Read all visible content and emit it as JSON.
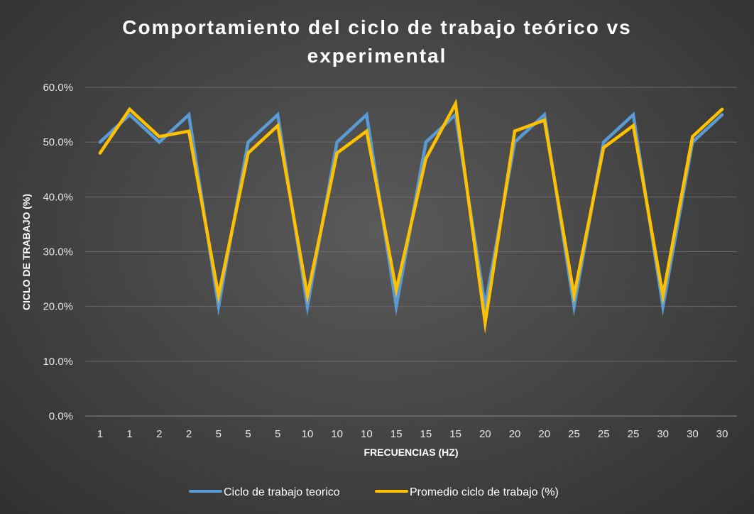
{
  "chart_data": {
    "type": "line",
    "title_lines": [
      "Comportamiento del ciclo de trabajo teórico vs",
      "experimental"
    ],
    "xlabel": "FRECUENCIAS (HZ)",
    "ylabel": "CICLO DE TRABAJO (%)",
    "categories": [
      "1",
      "1",
      "2",
      "2",
      "5",
      "5",
      "5",
      "10",
      "10",
      "10",
      "15",
      "15",
      "15",
      "20",
      "20",
      "20",
      "25",
      "25",
      "25",
      "30",
      "30",
      "30"
    ],
    "ylim": [
      0,
      60
    ],
    "yticks": [
      0,
      10,
      20,
      30,
      40,
      50,
      60
    ],
    "ytick_labels": [
      "0.0%",
      "10.0%",
      "20.0%",
      "30.0%",
      "40.0%",
      "50.0%",
      "60.0%"
    ],
    "grid": true,
    "legend_position": "bottom",
    "series": [
      {
        "name": "Ciclo de trabajo teorico",
        "color": "#5b9bd5",
        "values": [
          50,
          55,
          50,
          55,
          20,
          50,
          55,
          20,
          50,
          55,
          20,
          50,
          55,
          20,
          50,
          55,
          20,
          50,
          55,
          20,
          50,
          55
        ]
      },
      {
        "name": "Promedio ciclo de trabajo (%)",
        "color": "#ffc000",
        "values": [
          48,
          56,
          51,
          52,
          22,
          48,
          53,
          22,
          48,
          52,
          23,
          47,
          57,
          17,
          52,
          54,
          22,
          49,
          53,
          22,
          51,
          56
        ]
      }
    ]
  }
}
